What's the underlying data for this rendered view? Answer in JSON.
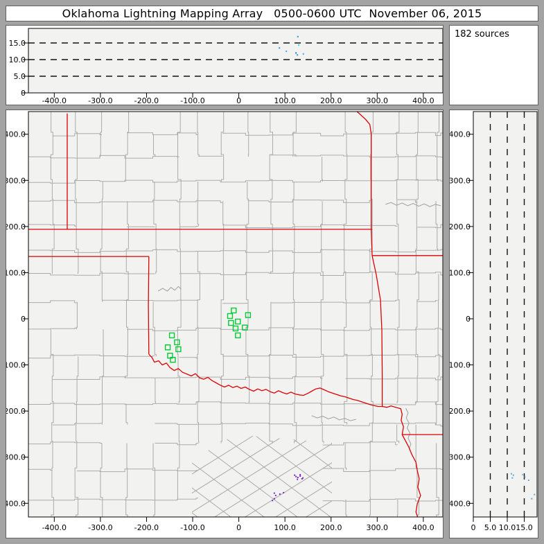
{
  "title": "Oklahoma Lightning Mapping Array   0500-0600 UTC  November 06, 2015",
  "sources_panel": {
    "label": "182 sources"
  },
  "colors": {
    "window_bg": "#a3a3a3",
    "panel_bg": "#ffffff",
    "plot_bg": "#f2f2f1",
    "panel_border": "#606060",
    "axis": "#000000",
    "county_line": "#ababab",
    "river_line": "#9f9f9f",
    "state_border": "#dd0000",
    "station_green": "#00cc33",
    "plan_source_purple": "#7b2fbe"
  },
  "chart_data": [
    {
      "id": "east_west_vs_altitude",
      "type": "scatter",
      "x_tick_values": [
        -400,
        -300,
        -200,
        -100,
        0,
        100,
        200,
        300,
        400
      ],
      "x_tick_labels": [
        "-400.0",
        "-300.0",
        "-200.0",
        "-100.0",
        "0",
        "100.0",
        "200.0",
        "300.0",
        "400.0"
      ],
      "y_tick_values": [
        0,
        5,
        10,
        15
      ],
      "y_tick_labels": [
        "0",
        "5.0",
        "10.0",
        "15.0"
      ],
      "dashed_levels_km": [
        5,
        10,
        15
      ],
      "x_range_km": [
        -470,
        440
      ],
      "y_range_km": [
        0,
        19.4
      ],
      "points": [
        {
          "ew_km": 128,
          "alt_km": 16.9,
          "color": "#2d8fe0"
        },
        {
          "ew_km": 130,
          "alt_km": 14.4,
          "color": "#39d0e8"
        },
        {
          "ew_km": 88,
          "alt_km": 13.5,
          "color": "#2d8fe0"
        },
        {
          "ew_km": 103,
          "alt_km": 12.5,
          "color": "#4aa3e8"
        },
        {
          "ew_km": 124,
          "alt_km": 12.0,
          "color": "#1c6fd4"
        },
        {
          "ew_km": 127,
          "alt_km": 11.4,
          "color": "#2d8fe0"
        },
        {
          "ew_km": 140,
          "alt_km": 11.7,
          "color": "#4aa3e8"
        }
      ]
    },
    {
      "id": "plan_view",
      "type": "scatter",
      "x_tick_values": [
        -400,
        -300,
        -200,
        -100,
        0,
        100,
        200,
        300,
        400
      ],
      "x_tick_labels": [
        "-400.0",
        "-300.0",
        "-200.0",
        "-100.0",
        "0",
        "100.0",
        "200.0",
        "300.0",
        "400.0"
      ],
      "y_tick_values": [
        400,
        300,
        200,
        100,
        0,
        -100,
        -200,
        -300,
        -400
      ],
      "y_tick_labels": [
        "400.0",
        "300.0",
        "200.0",
        "100.0",
        "0",
        "-100.0",
        "-200.0",
        "-300.0",
        "-400.0"
      ],
      "x_range_km": [
        -470,
        440
      ],
      "y_range_km": [
        -430,
        452
      ],
      "stations_km": [
        [
          -11,
          18
        ],
        [
          -19,
          6
        ],
        [
          20,
          8
        ],
        [
          -17,
          -9
        ],
        [
          -2,
          -6
        ],
        [
          -7,
          -21
        ],
        [
          13,
          -19
        ],
        [
          -2,
          -36
        ],
        [
          -145,
          -36
        ],
        [
          -134,
          -51
        ],
        [
          -154,
          -62
        ],
        [
          -131,
          -66
        ],
        [
          -149,
          -80
        ],
        [
          -143,
          -89
        ]
      ],
      "sources_km": [
        [
          121,
          -339
        ],
        [
          124,
          -342
        ],
        [
          128,
          -344
        ],
        [
          133,
          -341
        ],
        [
          137,
          -347
        ],
        [
          127,
          -348
        ],
        [
          139,
          -345
        ],
        [
          133,
          -338
        ],
        [
          77,
          -378
        ],
        [
          80,
          -383
        ],
        [
          77,
          -390
        ],
        [
          89,
          -380
        ],
        [
          97,
          -377
        ],
        [
          73,
          -394
        ]
      ],
      "state_borders_km": {
        "colorado_kansas": [
          [
            -372,
            445
          ],
          [
            -372,
            194
          ]
        ],
        "kansas_south_37N": [
          [
            -458,
            194
          ],
          [
            289,
            194
          ]
        ],
        "kansas_missouri": [
          [
            253,
            452
          ],
          [
            262,
            444
          ],
          [
            275,
            432
          ],
          [
            284,
            421
          ],
          [
            287,
            400
          ],
          [
            287,
            194
          ],
          [
            289,
            137
          ]
        ],
        "missouri_arkansas_36_5N": [
          [
            289,
            137
          ],
          [
            442,
            137
          ]
        ],
        "ok_panhandle_south_36_5N": [
          [
            -458,
            135
          ],
          [
            -195,
            135
          ]
        ],
        "texas_oklahoma_100W": [
          [
            -195,
            135
          ],
          [
            -196,
            30
          ],
          [
            -195,
            -77
          ]
        ],
        "red_river": [
          [
            -195,
            -77
          ],
          [
            -188,
            -84
          ],
          [
            -183,
            -94
          ],
          [
            -174,
            -91
          ],
          [
            -166,
            -100
          ],
          [
            -157,
            -96
          ],
          [
            -149,
            -106
          ],
          [
            -140,
            -112
          ],
          [
            -131,
            -108
          ],
          [
            -122,
            -116
          ],
          [
            -112,
            -120
          ],
          [
            -103,
            -124
          ],
          [
            -94,
            -119
          ],
          [
            -85,
            -128
          ],
          [
            -76,
            -131
          ],
          [
            -67,
            -127
          ],
          [
            -58,
            -134
          ],
          [
            -49,
            -139
          ],
          [
            -40,
            -144
          ],
          [
            -31,
            -148
          ],
          [
            -22,
            -144
          ],
          [
            -13,
            -149
          ],
          [
            -4,
            -146
          ],
          [
            5,
            -151
          ],
          [
            14,
            -148
          ],
          [
            23,
            -153
          ],
          [
            32,
            -157
          ],
          [
            41,
            -152
          ],
          [
            50,
            -156
          ],
          [
            59,
            -153
          ],
          [
            68,
            -158
          ],
          [
            77,
            -161
          ],
          [
            86,
            -156
          ],
          [
            95,
            -160
          ],
          [
            104,
            -163
          ],
          [
            113,
            -159
          ],
          [
            122,
            -163
          ],
          [
            131,
            -165
          ],
          [
            140,
            -166
          ],
          [
            149,
            -162
          ],
          [
            158,
            -157
          ],
          [
            167,
            -152
          ],
          [
            176,
            -150
          ],
          [
            185,
            -154
          ],
          [
            194,
            -158
          ],
          [
            203,
            -161
          ],
          [
            212,
            -164
          ],
          [
            221,
            -167
          ],
          [
            230,
            -169
          ],
          [
            239,
            -172
          ],
          [
            248,
            -175
          ],
          [
            257,
            -177
          ],
          [
            266,
            -180
          ],
          [
            275,
            -183
          ],
          [
            284,
            -186
          ],
          [
            293,
            -188
          ],
          [
            302,
            -190
          ],
          [
            313,
            -190
          ]
        ],
        "oklahoma_arkansas": [
          [
            289,
            137
          ],
          [
            298,
            95
          ],
          [
            307,
            41
          ],
          [
            310,
            -24
          ],
          [
            311,
            -122
          ],
          [
            311,
            -190
          ]
        ],
        "red_river_arkansas": [
          [
            311,
            -190
          ],
          [
            321,
            -192
          ],
          [
            330,
            -189
          ],
          [
            340,
            -192
          ],
          [
            351,
            -195
          ],
          [
            354,
            -207
          ],
          [
            352,
            -220
          ],
          [
            357,
            -234
          ],
          [
            354,
            -251
          ]
        ],
        "arkansas_louisiana_33N": [
          [
            354,
            -251
          ],
          [
            442,
            -251
          ]
        ],
        "texas_louisiana": [
          [
            354,
            -251
          ],
          [
            361,
            -264
          ],
          [
            369,
            -279
          ],
          [
            375,
            -294
          ],
          [
            384,
            -311
          ],
          [
            387,
            -329
          ],
          [
            391,
            -347
          ],
          [
            388,
            -365
          ],
          [
            394,
            -383
          ],
          [
            387,
            -401
          ],
          [
            384,
            -419
          ],
          [
            390,
            -436
          ]
        ]
      },
      "rivers_km": [
        [
          [
            318,
            248
          ],
          [
            330,
            252
          ],
          [
            342,
            246
          ],
          [
            354,
            251
          ],
          [
            366,
            245
          ],
          [
            378,
            250
          ],
          [
            390,
            244
          ],
          [
            402,
            249
          ],
          [
            414,
            243
          ],
          [
            426,
            248
          ],
          [
            438,
            245
          ]
        ],
        [
          [
            158,
            -210
          ],
          [
            170,
            -215
          ],
          [
            182,
            -211
          ],
          [
            194,
            -217
          ],
          [
            206,
            -213
          ],
          [
            218,
            -219
          ],
          [
            230,
            -216
          ],
          [
            242,
            -221
          ],
          [
            254,
            -218
          ]
        ],
        [
          [
            362,
            -194
          ],
          [
            367,
            -204
          ],
          [
            363,
            -215
          ],
          [
            369,
            -226
          ],
          [
            365,
            -237
          ],
          [
            371,
            -248
          ],
          [
            367,
            -259
          ],
          [
            373,
            -271
          ],
          [
            369,
            -283
          ]
        ],
        [
          [
            -175,
            60
          ],
          [
            -165,
            66
          ],
          [
            -155,
            60
          ],
          [
            -147,
            68
          ],
          [
            -139,
            62
          ],
          [
            -131,
            70
          ],
          [
            -125,
            64
          ]
        ]
      ]
    },
    {
      "id": "north_south_vs_altitude",
      "type": "scatter",
      "x_tick_values": [
        0,
        5,
        10,
        15
      ],
      "x_tick_labels": [
        "0",
        "5.0",
        "10.0",
        "15.0"
      ],
      "y_tick_values": [
        400,
        300,
        200,
        100,
        0,
        -100,
        -200,
        -300,
        -400
      ],
      "y_tick_labels": [
        "400.0",
        "300.0",
        "200.0",
        "100.0",
        "0",
        "-100.0",
        "-200.0",
        "-300.0",
        "-400.0"
      ],
      "dashed_levels_km": [
        5,
        10,
        15
      ],
      "x_range_km": [
        0,
        18.8
      ],
      "y_range_km": [
        -430,
        452
      ],
      "points": [
        {
          "ns_km": -336,
          "alt_km": 11.2,
          "color": "#5aa7e0"
        },
        {
          "ns_km": -339,
          "alt_km": 11.8,
          "color": "#5aa7e0"
        },
        {
          "ns_km": -338,
          "alt_km": 14.5,
          "color": "#7fc0ea"
        },
        {
          "ns_km": -345,
          "alt_km": 11.5,
          "color": "#5aa7e0"
        },
        {
          "ns_km": -343,
          "alt_km": 15.2,
          "color": "#5aa7e0"
        },
        {
          "ns_km": -350,
          "alt_km": 16.3,
          "color": "#5aa7e0"
        },
        {
          "ns_km": -381,
          "alt_km": 18.0,
          "color": "#5aa7e0"
        },
        {
          "ns_km": -390,
          "alt_km": 17.2,
          "color": "#5aa7e0"
        }
      ]
    }
  ]
}
